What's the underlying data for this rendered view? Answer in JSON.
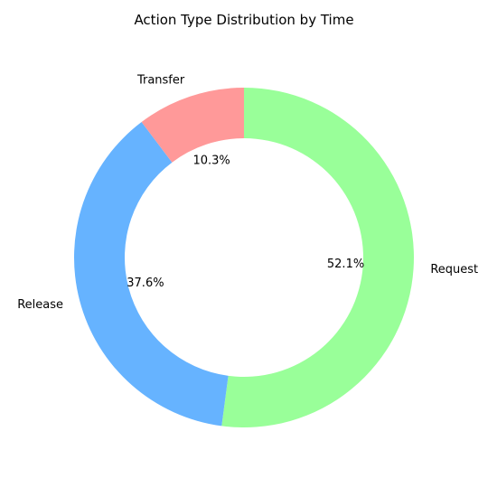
{
  "chart_data": {
    "type": "pie",
    "donut": true,
    "title": "Action Type Distribution by Time",
    "slices": [
      {
        "label": "Request",
        "value": 52.1,
        "pct_label": "52.1%",
        "color": "#99ff99"
      },
      {
        "label": "Release",
        "value": 37.6,
        "pct_label": "37.6%",
        "color": "#66b3ff"
      },
      {
        "label": "Transfer",
        "value": 10.3,
        "pct_label": "10.3%",
        "color": "#ff9999"
      }
    ],
    "start_angle_deg": 90,
    "direction": "clockwise",
    "legend": "none"
  }
}
